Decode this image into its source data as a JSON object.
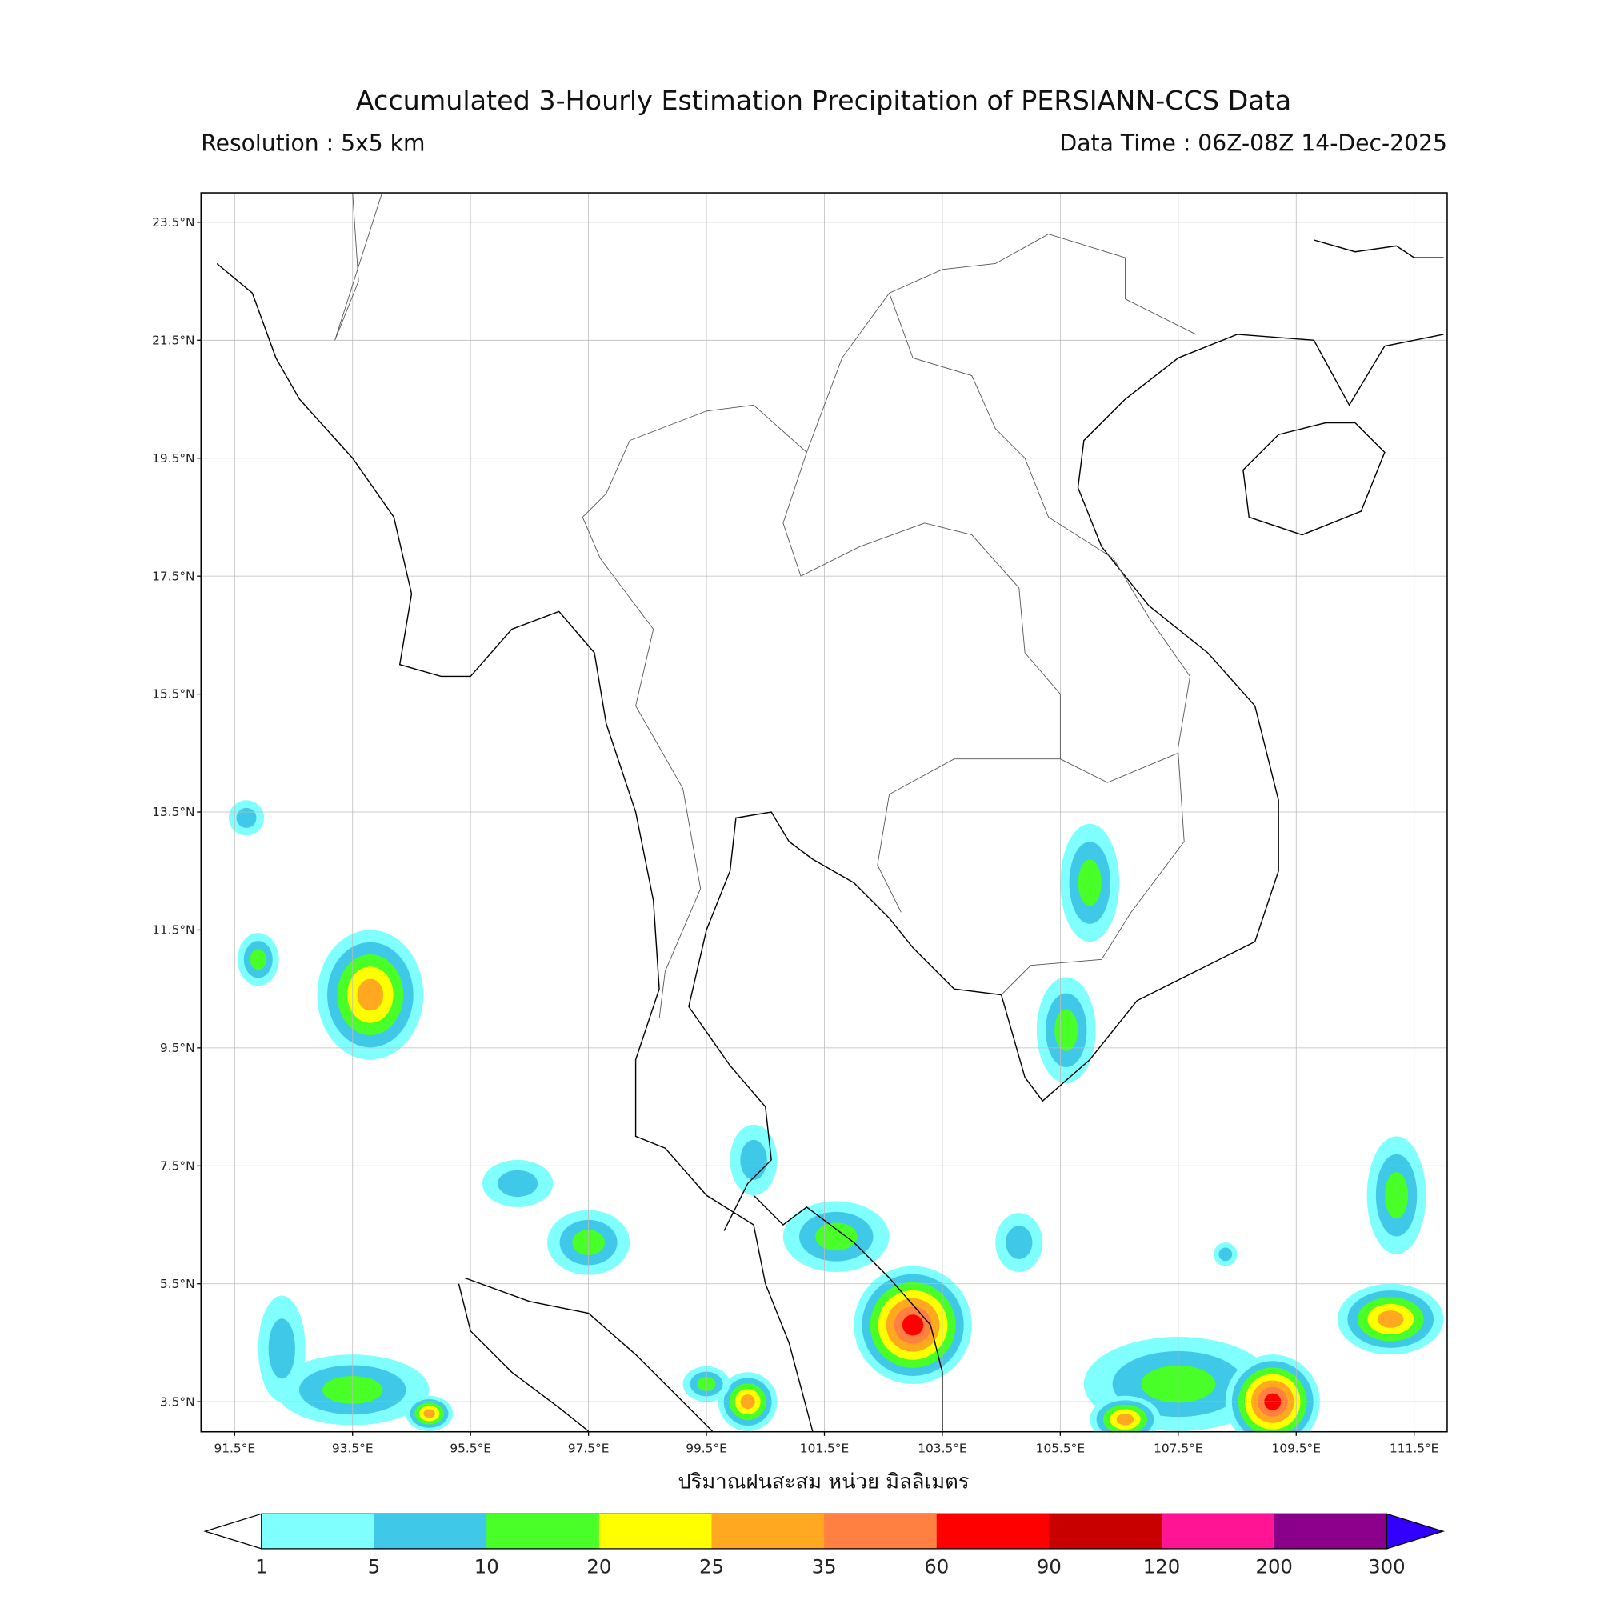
{
  "title": "Accumulated 3-Hourly Estimation Precipitation of PERSIANN-CCS Data",
  "resolution": "Resolution : 5x5 km",
  "data_time": "Data Time : 06Z-08Z 14-Dec-2025",
  "xlabel": "ปริมาณฝนสะสม หน่วย มิลลิเมตร",
  "map": {
    "lon_range": [
      90.93,
      112.06
    ],
    "lat_range": [
      2.99,
      24.0
    ],
    "lon_ticks": [
      "91.5°E",
      "93.5°E",
      "95.5°E",
      "97.5°E",
      "99.5°E",
      "101.5°E",
      "103.5°E",
      "105.5°E",
      "107.5°E",
      "109.5°E",
      "111.5°E"
    ],
    "lon_tick_values": [
      91.5,
      93.5,
      95.5,
      97.5,
      99.5,
      101.5,
      103.5,
      105.5,
      107.5,
      109.5,
      111.5
    ],
    "lat_ticks": [
      "23.5°N",
      "21.5°N",
      "19.5°N",
      "17.5°N",
      "15.5°N",
      "13.5°N",
      "11.5°N",
      "9.5°N",
      "7.5°N",
      "5.5°N",
      "3.5°N"
    ],
    "lat_tick_values": [
      23.5,
      21.5,
      19.5,
      17.5,
      15.5,
      13.5,
      11.5,
      9.5,
      7.5,
      5.5,
      3.5
    ],
    "grid": true
  },
  "colorbar": {
    "labels": [
      "1",
      "5",
      "10",
      "20",
      "25",
      "35",
      "60",
      "90",
      "120",
      "200",
      "300"
    ],
    "colors": [
      "#80ffff",
      "#40c8e8",
      "#48ff28",
      "#ffff00",
      "#ffa820",
      "#ff8040",
      "#ff0000",
      "#c80000",
      "#ff1493",
      "#8b008b"
    ],
    "under_color": "#ffffff",
    "over_color": "#3300ff"
  }
}
